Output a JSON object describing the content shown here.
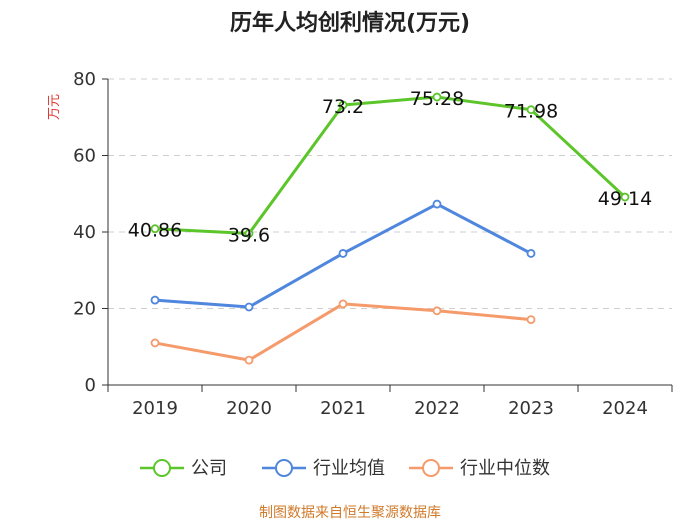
{
  "chart_data": {
    "type": "line",
    "title": "历年人均创利情况(万元)",
    "ylabel": "万元",
    "xlabel": "",
    "categories": [
      "2019",
      "2020",
      "2021",
      "2022",
      "2023",
      "2024"
    ],
    "ylim": [
      0,
      80
    ],
    "yticks": [
      0,
      20,
      40,
      60,
      80
    ],
    "grid": true,
    "legend_position": "bottom",
    "series": [
      {
        "name": "公司",
        "color": "#5cc52a",
        "values": [
          40.86,
          39.6,
          73.2,
          75.28,
          71.98,
          49.14
        ],
        "labels": [
          "40.86",
          "39.6",
          "73.2",
          "75.28",
          "71.98",
          "49.14"
        ]
      },
      {
        "name": "行业均值",
        "color": "#4f86de",
        "values": [
          22.2,
          20.4,
          34.4,
          47.3,
          34.4,
          null
        ]
      },
      {
        "name": "行业中位数",
        "color": "#f59a6a",
        "values": [
          11.0,
          6.5,
          21.2,
          19.4,
          17.1,
          null
        ]
      }
    ],
    "source": "制图数据来自恒生聚源数据库"
  }
}
